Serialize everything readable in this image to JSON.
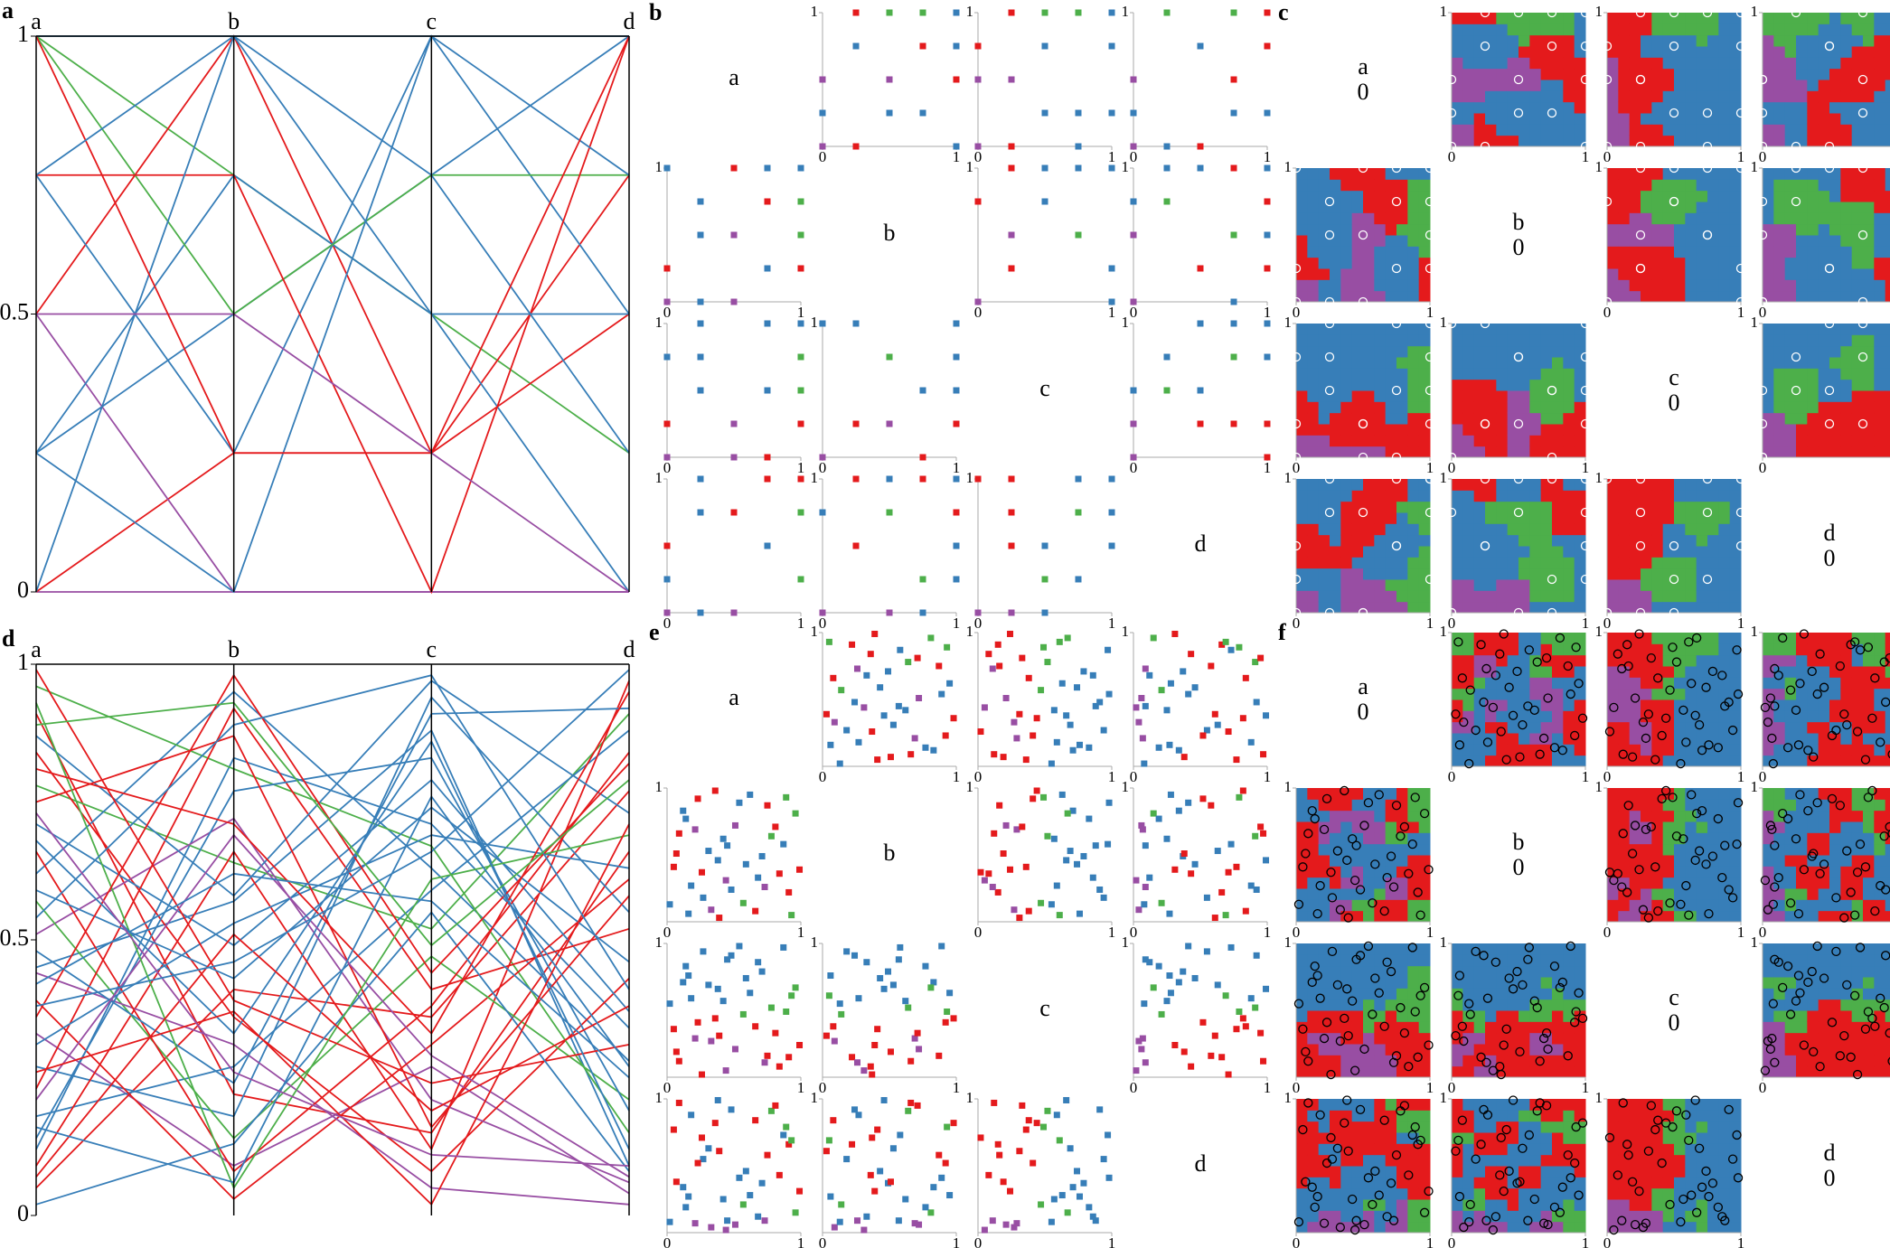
{
  "variables": [
    "a",
    "b",
    "c",
    "d"
  ],
  "class_colors": [
    "#377eb8",
    "#e41a1c",
    "#984ea3",
    "#4daf4a"
  ],
  "rows": [
    {
      "points": [
        [
          0,
          0,
          0,
          0
        ],
        [
          0.25,
          0.5,
          0.75,
          1
        ],
        [
          1,
          0.75,
          0.5,
          0.25
        ],
        [
          0.5,
          1,
          0.25,
          0.75
        ],
        [
          0.75,
          0.25,
          1,
          0.5
        ],
        [
          1,
          1,
          1,
          1
        ],
        [
          0,
          0.25,
          0.25,
          0.5
        ],
        [
          0.5,
          0,
          0,
          0
        ],
        [
          0.25,
          0.75,
          0.5,
          0
        ],
        [
          1,
          0.5,
          0.75,
          0.75
        ],
        [
          0.75,
          0.75,
          0,
          1
        ],
        [
          0,
          1,
          0.75,
          0.25
        ],
        [
          0.5,
          0.5,
          0.25,
          0
        ],
        [
          0.25,
          0,
          1,
          0.75
        ],
        [
          1,
          0.25,
          0.25,
          1
        ],
        [
          0.75,
          1,
          0.5,
          0.5
        ]
      ],
      "classes": [
        2,
        0,
        3,
        1,
        0,
        0,
        1,
        2,
        0,
        3,
        1,
        0,
        2,
        0,
        1,
        0
      ],
      "panels": [
        {
          "label": "a",
          "type": "parallel",
          "ylim": [
            0,
            1
          ],
          "yticks": [
            0,
            0.5,
            1
          ]
        },
        {
          "label": "b",
          "type": "scatter_matrix",
          "ticks": [
            0,
            1
          ]
        },
        {
          "label": "c",
          "type": "region_matrix",
          "ticks": [
            0,
            1
          ],
          "diagonal_value": 0
        }
      ]
    },
    {
      "points": [
        [
          0.12,
          0.83,
          0.71,
          0.34
        ],
        [
          0.91,
          0.22,
          0.15,
          0.66
        ],
        [
          0.45,
          0.57,
          0.88,
          0.09
        ],
        [
          0.33,
          0.09,
          0.27,
          0.04
        ],
        [
          0.78,
          0.64,
          0.52,
          0.91
        ],
        [
          0.05,
          0.41,
          0.36,
          0.77
        ],
        [
          0.62,
          0.95,
          0.63,
          0.28
        ],
        [
          0.27,
          0.18,
          0.94,
          0.55
        ],
        [
          0.84,
          0.36,
          0.08,
          0.43
        ],
        [
          0.51,
          0.72,
          0.21,
          0.06
        ],
        [
          0.18,
          0.27,
          0.59,
          0.88
        ],
        [
          0.96,
          0.81,
          0.67,
          0.15
        ],
        [
          0.39,
          0.03,
          0.31,
          0.61
        ],
        [
          0.71,
          0.49,
          0.79,
          0.37
        ],
        [
          0.09,
          0.66,
          0.12,
          0.97
        ],
        [
          0.57,
          0.14,
          0.47,
          0.21
        ],
        [
          0.23,
          0.92,
          0.41,
          0.52
        ],
        [
          0.87,
          0.58,
          0.97,
          0.73
        ],
        [
          0.44,
          0.31,
          0.05,
          0.02
        ],
        [
          0.14,
          0.77,
          0.83,
          0.19
        ],
        [
          0.66,
          0.08,
          0.38,
          0.84
        ],
        [
          0.31,
          0.53,
          0.69,
          0.63
        ],
        [
          0.99,
          0.39,
          0.24,
          0.31
        ],
        [
          0.02,
          0.13,
          0.55,
          0.08
        ],
        [
          0.75,
          0.87,
          0.16,
          0.58
        ],
        [
          0.48,
          0.24,
          0.91,
          0.92
        ],
        [
          0.21,
          0.69,
          0.29,
          0.07
        ],
        [
          0.59,
          0.43,
          0.74,
          0.46
        ],
        [
          0.93,
          0.05,
          0.61,
          0.69
        ],
        [
          0.36,
          0.98,
          0.44,
          0.82
        ],
        [
          0.68,
          0.33,
          0.86,
          0.12
        ],
        [
          0.07,
          0.51,
          0.19,
          0.38
        ],
        [
          0.81,
          0.71,
          0.33,
          0.95
        ],
        [
          0.42,
          0.62,
          0.57,
          0.25
        ],
        [
          0.26,
          0.37,
          0.02,
          0.71
        ],
        [
          0.54,
          0.89,
          0.98,
          0.41
        ],
        [
          0.16,
          0.06,
          0.76,
          0.27
        ],
        [
          0.73,
          0.26,
          0.11,
          0.09
        ],
        [
          0.89,
          0.93,
          0.49,
          0.79
        ],
        [
          0.38,
          0.46,
          0.66,
          0.99
        ]
      ],
      "classes": [
        0,
        1,
        0,
        2,
        3,
        1,
        0,
        0,
        1,
        2,
        0,
        3,
        1,
        0,
        1,
        3,
        1,
        0,
        2,
        0,
        1,
        0,
        1,
        0,
        1,
        0,
        2,
        0,
        3,
        1,
        0,
        1,
        1,
        0,
        1,
        0,
        0,
        2,
        3,
        0
      ],
      "panels": [
        {
          "label": "d",
          "type": "parallel",
          "ylim": [
            0,
            1
          ],
          "yticks": [
            0,
            0.5,
            1
          ]
        },
        {
          "label": "e",
          "type": "scatter_matrix",
          "ticks": [
            0,
            1
          ]
        },
        {
          "label": "f",
          "type": "region_matrix",
          "ticks": [
            0,
            1
          ],
          "diagonal_value": 0
        }
      ]
    }
  ]
}
